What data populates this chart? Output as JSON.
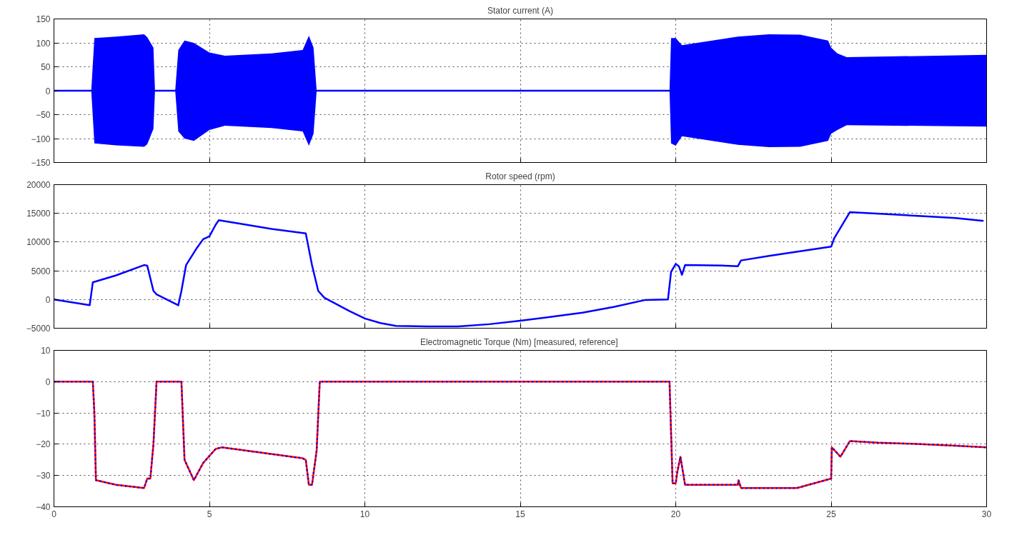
{
  "chart_data": [
    {
      "type": "line",
      "title": "Stator current (A)",
      "x": [
        0,
        1.2,
        1.3,
        2.0,
        2.9,
        3.0,
        3.2,
        3.25,
        3.9,
        4.0,
        4.2,
        4.5,
        5.0,
        5.5,
        7.0,
        8.0,
        8.2,
        8.35,
        8.45,
        19.8,
        19.85,
        20.0,
        20.2,
        22,
        23,
        24,
        24.9,
        25.0,
        25.2,
        25.5,
        30
      ],
      "series": [
        {
          "color": "#0000ff",
          "values": [
            0,
            0,
            0,
            0,
            0,
            0,
            0,
            0,
            0,
            0,
            0,
            0,
            0,
            0,
            0,
            0,
            0,
            0,
            0,
            0,
            0,
            0,
            0,
            0,
            0,
            0,
            0,
            0,
            0,
            0,
            0
          ],
          "upper": [
            0,
            0,
            110,
            113,
            118,
            112,
            90,
            0,
            0,
            85,
            105,
            100,
            80,
            73,
            78,
            85,
            115,
            90,
            0,
            0,
            110,
            110,
            95,
            113,
            118,
            117,
            105,
            90,
            78,
            70,
            75
          ],
          "lower": [
            0,
            0,
            -110,
            -114,
            -117,
            -112,
            -80,
            0,
            0,
            -85,
            -100,
            -105,
            -82,
            -73,
            -78,
            -85,
            -115,
            -90,
            0,
            0,
            -110,
            -115,
            -95,
            -113,
            -118,
            -117,
            -105,
            -90,
            -82,
            -72,
            -75
          ]
        }
      ],
      "xlim": [
        0,
        30
      ],
      "xticks": [
        0,
        5,
        10,
        15,
        20,
        25,
        30
      ],
      "ylim": [
        -150,
        150
      ],
      "yticks": [
        -150,
        -100,
        -50,
        0,
        50,
        100,
        150
      ],
      "grid": true,
      "tick_labels": "y"
    },
    {
      "type": "line",
      "title": "Rotor speed (rpm)",
      "x": [
        0,
        1.15,
        1.25,
        2.0,
        2.9,
        3.0,
        3.2,
        3.3,
        4.0,
        4.1,
        4.25,
        4.6,
        4.8,
        5.0,
        5.2,
        5.3,
        6,
        7,
        8.1,
        8.3,
        8.5,
        8.7,
        9.5,
        10,
        10.5,
        11,
        12,
        13,
        14,
        15,
        16,
        17,
        18,
        19,
        19.75,
        19.85,
        20.0,
        20.1,
        20.2,
        20.3,
        21.5,
        22,
        22.1,
        23,
        24,
        25,
        25.1,
        25.3,
        25.6,
        27,
        28,
        29,
        29.9
      ],
      "series": [
        {
          "color": "#0000ff",
          "values": [
            0,
            -1000,
            3000,
            4200,
            6000,
            5900,
            1500,
            900,
            -1000,
            1500,
            6000,
            9000,
            10500,
            11000,
            13000,
            13800,
            13200,
            12300,
            11500,
            6000,
            1500,
            300,
            -2000,
            -3300,
            -4100,
            -4600,
            -4700,
            -4700,
            -4300,
            -3700,
            -3000,
            -2300,
            -1300,
            -100,
            0,
            4800,
            6200,
            5800,
            4300,
            6000,
            5900,
            5800,
            6800,
            7600,
            8400,
            9200,
            10700,
            12500,
            15200,
            14800,
            14500,
            14200,
            13700
          ]
        }
      ],
      "xlim": [
        0,
        30
      ],
      "xticks": [
        0,
        5,
        10,
        15,
        20,
        25,
        30
      ],
      "ylim": [
        -5000,
        20000
      ],
      "yticks": [
        -5000,
        0,
        5000,
        10000,
        15000,
        20000
      ],
      "grid": true,
      "tick_labels": "y"
    },
    {
      "type": "line",
      "title": "Electromagnetic Torque (Nm)  [measured, reference]",
      "x": [
        0,
        1.25,
        1.3,
        1.35,
        2,
        2.9,
        3.0,
        3.1,
        3.2,
        3.3,
        4.1,
        4.2,
        4.5,
        4.8,
        5.2,
        5.4,
        8.0,
        8.1,
        8.2,
        8.3,
        8.45,
        8.55,
        19.8,
        19.9,
        20.0,
        20.05,
        20.15,
        20.3,
        22.0,
        22.02,
        22.1,
        23.9,
        25.0,
        25.02,
        25.3,
        25.6,
        26.5,
        28,
        29,
        30
      ],
      "series": [
        {
          "color": "#ff0000",
          "line_style": "solid",
          "values": [
            0,
            0,
            -10,
            -31.5,
            -33,
            -34,
            -31,
            -31,
            -20,
            0,
            0,
            -25,
            -31.5,
            -26,
            -21.5,
            -21,
            -24.5,
            -25,
            -33,
            -33,
            -22,
            0,
            0,
            -32.5,
            -32.5,
            -29,
            -24,
            -33,
            -33,
            -31.5,
            -34,
            -34,
            -31,
            -21,
            -24,
            -19,
            -19.5,
            -20,
            -20.5,
            -21
          ]
        },
        {
          "color": "#0000ff",
          "line_style": "dotted",
          "values": [
            0,
            0,
            -10,
            -31.5,
            -33,
            -34,
            -31,
            -31,
            -20,
            0,
            0,
            -25,
            -31.5,
            -26,
            -21.5,
            -21,
            -24.5,
            -25,
            -33,
            -33,
            -22,
            0,
            0,
            -32.5,
            -32.5,
            -29,
            -24,
            -33,
            -33,
            -31.5,
            -34,
            -34,
            -31,
            -21,
            -24,
            -19,
            -19.5,
            -20,
            -20.5,
            -21
          ]
        }
      ],
      "xlim": [
        0,
        30
      ],
      "xticks": [
        0,
        5,
        10,
        15,
        20,
        25,
        30
      ],
      "ylim": [
        -40,
        10
      ],
      "yticks": [
        -40,
        -30,
        -20,
        -10,
        0,
        10
      ],
      "grid": true
    }
  ]
}
